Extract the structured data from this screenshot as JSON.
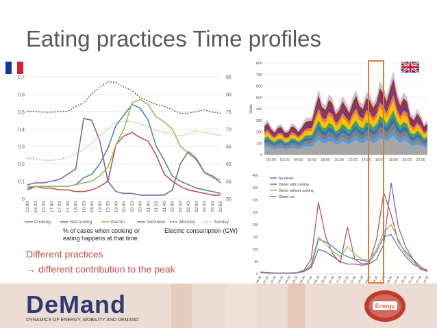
{
  "slide": {
    "title": "Eating practices Time profiles",
    "text1": "Different practices",
    "text2": "→ different contribution to the peak",
    "caption_left": "% of cases when cooking or",
    "caption_left2": "eating happens at that time",
    "caption_right": "Electric consumption (GW)"
  },
  "footer": {
    "logo_text": "DeMand",
    "logo_subtitle": "DYNAMICS OF ENERGY, MOBILITY AND DEMAND",
    "badge_text": "Energy"
  },
  "colors": {
    "Cooking": "#4f81bd",
    "NoCooking": "#c0504d",
    "EatOut": "#9bbb59",
    "NoDinner": "#8064a2",
    "Monday": "#444444",
    "Sunday": "#c9a34e"
  },
  "chart_data": [
    {
      "type": "line",
      "region": "france",
      "x": [
        "16:00",
        "16:20",
        "16:40",
        "17:00",
        "17:20",
        "17:40",
        "18:00",
        "18:20",
        "18:40",
        "19:00",
        "19:20",
        "19:40",
        "20:00",
        "20:20",
        "20:40",
        "21:00",
        "21:20",
        "21:40",
        "22:00",
        "22:20",
        "22:40",
        "23:00",
        "23:20",
        "23:40",
        "23:59"
      ],
      "ylim": [
        0,
        0.7
      ],
      "yticks": [
        "0",
        "0,1",
        "0,2",
        "0,3",
        "0,4",
        "0,5",
        "0,6",
        "0,7"
      ],
      "y2lim": [
        50,
        85
      ],
      "y2ticks": [
        "50",
        "55",
        "60",
        "65",
        "70",
        "75",
        "80",
        "85"
      ],
      "series": [
        {
          "name": "Cooking",
          "axis": "left",
          "values": [
            0.06,
            0.07,
            0.07,
            0.07,
            0.07,
            0.07,
            0.08,
            0.12,
            0.14,
            0.2,
            0.29,
            0.42,
            0.48,
            0.54,
            0.52,
            0.45,
            0.3,
            0.22,
            0.13,
            0.1,
            0.08,
            0.06,
            0.05,
            0.04,
            0.03
          ]
        },
        {
          "name": "NoCooking",
          "axis": "left",
          "values": [
            0.05,
            0.07,
            0.06,
            0.06,
            0.05,
            0.05,
            0.04,
            0.04,
            0.05,
            0.07,
            0.1,
            0.31,
            0.36,
            0.38,
            0.35,
            0.33,
            0.25,
            0.14,
            0.1,
            0.07,
            0.05,
            0.04,
            0.03,
            0.02,
            0.02
          ]
        },
        {
          "name": "EatOut",
          "axis": "left",
          "values": [
            0.07,
            0.07,
            0.07,
            0.07,
            0.07,
            0.07,
            0.08,
            0.09,
            0.1,
            0.13,
            0.18,
            0.31,
            0.4,
            0.55,
            0.57,
            0.54,
            0.47,
            0.44,
            0.4,
            0.3,
            0.26,
            0.22,
            0.15,
            0.12,
            0.11
          ]
        },
        {
          "name": "NoDinner",
          "axis": "left",
          "values": [
            0.08,
            0.09,
            0.09,
            0.1,
            0.11,
            0.14,
            0.17,
            0.46,
            0.45,
            0.33,
            0.1,
            0.04,
            0.03,
            0.03,
            0.02,
            0.02,
            0.02,
            0.02,
            0.05,
            0.2,
            0.27,
            0.23,
            0.15,
            0.13,
            0.09
          ]
        },
        {
          "name": "Monday",
          "axis": "right",
          "values": [
            75,
            75,
            74.8,
            74.8,
            75,
            75,
            76.5,
            77.5,
            80,
            82,
            83.5,
            83.3,
            82,
            81,
            79,
            78,
            77,
            76.5,
            75.5,
            74.5,
            74.5,
            75,
            75.5,
            74.8,
            74.5
          ]
        },
        {
          "name": "Sunday",
          "axis": "right",
          "values": [
            61.5,
            61.5,
            61,
            61,
            61.2,
            61.8,
            63,
            64,
            66,
            68,
            70,
            72,
            72.3,
            72,
            71.5,
            70.5,
            69.5,
            69,
            68.5,
            68,
            68.5,
            69.5,
            69,
            68.5,
            68.2
          ]
        }
      ],
      "legend": [
        "Cooking",
        "NoCooking",
        "EatOut",
        "NoDinner",
        "Monday",
        "Sunday"
      ],
      "legend_position": "bottom"
    },
    {
      "type": "area",
      "region": "uk",
      "ylabel": "Watts",
      "ylim": [
        0,
        800
      ],
      "yticks": [
        "0",
        "100",
        "200",
        "300",
        "400",
        "500",
        "600",
        "700",
        "800"
      ],
      "xticks": [
        "00:00",
        "02:00",
        "04:00",
        "06:00",
        "08:00",
        "10:00",
        "12:00",
        "14:00",
        "16:00",
        "18:00",
        "20:00",
        "22:00"
      ]
    },
    {
      "type": "line",
      "region": "uk",
      "ylim": [
        0,
        400
      ],
      "yticks": [
        "0",
        "50",
        "100",
        "150",
        "200",
        "250",
        "300",
        "350",
        "400"
      ],
      "xticks": [
        "00:00",
        "01:00",
        "02:00",
        "03:00",
        "04:00",
        "05:00",
        "06:00",
        "07:00",
        "08:00",
        "09:00",
        "10:00",
        "11:00",
        "12:00",
        "13:00",
        "14:00",
        "15:00",
        "16:00",
        "17:00",
        "18:00",
        "19:00",
        "20:00",
        "21:00",
        "22:00",
        "23:00"
      ],
      "series": [
        {
          "name": "No dinner",
          "values": [
            5,
            4,
            3,
            3,
            3,
            3,
            10,
            30,
            140,
            130,
            110,
            85,
            70,
            60,
            55,
            50,
            90,
            150,
            160,
            110,
            70,
            40,
            25,
            15
          ]
        },
        {
          "name": "Dinner with cooking",
          "values": [
            8,
            6,
            4,
            4,
            4,
            5,
            15,
            60,
            290,
            150,
            80,
            45,
            190,
            60,
            40,
            45,
            140,
            330,
            240,
            130,
            90,
            60,
            20,
            10
          ]
        },
        {
          "name": "Dinner without cooking",
          "values": [
            6,
            5,
            4,
            4,
            4,
            5,
            12,
            40,
            150,
            120,
            90,
            70,
            110,
            80,
            60,
            55,
            100,
            170,
            200,
            140,
            80,
            50,
            25,
            12
          ]
        },
        {
          "name": "Dinner out",
          "values": [
            5,
            4,
            3,
            3,
            3,
            4,
            10,
            25,
            100,
            90,
            70,
            50,
            40,
            40,
            35,
            40,
            60,
            120,
            370,
            190,
            110,
            60,
            30,
            12
          ]
        }
      ],
      "legend": [
        "No dinner",
        "Dinner with cooking",
        "Dinner without cooking",
        "Dinner out"
      ],
      "legend_position": "top-right"
    }
  ]
}
